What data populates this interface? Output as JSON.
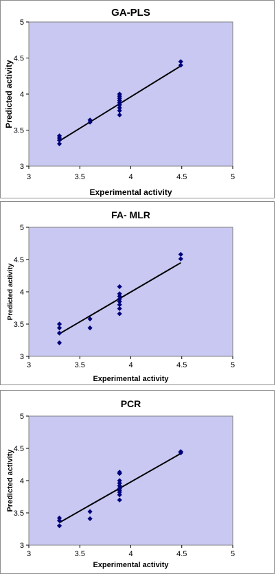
{
  "colors": {
    "plot_background": "#c8c8f2",
    "marker": "#00007a",
    "line": "#000000"
  },
  "chart_data": [
    {
      "type": "scatter",
      "title": "GA-PLS",
      "xlabel": "Experimental activity",
      "ylabel": "Predicted activity",
      "xlim": [
        3,
        5
      ],
      "ylim": [
        3,
        5
      ],
      "xticks": [
        "3",
        "3.5",
        "4",
        "4.5",
        "5"
      ],
      "yticks": [
        "3",
        "3.5",
        "4",
        "4.5",
        "5"
      ],
      "grid": false,
      "points": [
        {
          "x": 3.3,
          "y": 3.31
        },
        {
          "x": 3.3,
          "y": 3.36
        },
        {
          "x": 3.3,
          "y": 3.39
        },
        {
          "x": 3.3,
          "y": 3.42
        },
        {
          "x": 3.6,
          "y": 3.61
        },
        {
          "x": 3.6,
          "y": 3.64
        },
        {
          "x": 3.89,
          "y": 3.71
        },
        {
          "x": 3.89,
          "y": 3.77
        },
        {
          "x": 3.89,
          "y": 3.81
        },
        {
          "x": 3.89,
          "y": 3.85
        },
        {
          "x": 3.89,
          "y": 3.88
        },
        {
          "x": 3.89,
          "y": 3.91
        },
        {
          "x": 3.89,
          "y": 3.94
        },
        {
          "x": 3.89,
          "y": 3.97
        },
        {
          "x": 3.89,
          "y": 4.0
        },
        {
          "x": 4.49,
          "y": 4.4
        },
        {
          "x": 4.49,
          "y": 4.45
        }
      ],
      "trendline": {
        "x": [
          3.3,
          4.49
        ],
        "y": [
          3.35,
          4.39
        ]
      }
    },
    {
      "type": "scatter",
      "title": "FA- MLR",
      "xlabel": "Experimental activity",
      "ylabel": "Predicted activity",
      "xlim": [
        3,
        5
      ],
      "ylim": [
        3,
        5
      ],
      "xticks": [
        "3",
        "3.5",
        "4",
        "4.5",
        "5"
      ],
      "yticks": [
        "3",
        "3.5",
        "4",
        "4.5",
        "5"
      ],
      "grid": false,
      "points": [
        {
          "x": 3.3,
          "y": 3.21
        },
        {
          "x": 3.3,
          "y": 3.36
        },
        {
          "x": 3.3,
          "y": 3.44
        },
        {
          "x": 3.3,
          "y": 3.5
        },
        {
          "x": 3.6,
          "y": 3.44
        },
        {
          "x": 3.6,
          "y": 3.58
        },
        {
          "x": 3.89,
          "y": 3.66
        },
        {
          "x": 3.89,
          "y": 3.74
        },
        {
          "x": 3.89,
          "y": 3.8
        },
        {
          "x": 3.89,
          "y": 3.85
        },
        {
          "x": 3.89,
          "y": 3.89
        },
        {
          "x": 3.89,
          "y": 3.93
        },
        {
          "x": 3.89,
          "y": 3.97
        },
        {
          "x": 3.89,
          "y": 4.08
        },
        {
          "x": 4.49,
          "y": 4.51
        },
        {
          "x": 4.49,
          "y": 4.58
        }
      ],
      "trendline": {
        "x": [
          3.3,
          4.49
        ],
        "y": [
          3.35,
          4.45
        ]
      }
    },
    {
      "type": "scatter",
      "title": "PCR",
      "xlabel": "Experimental activity",
      "ylabel": "Predicted activity",
      "xlim": [
        3,
        5
      ],
      "ylim": [
        3,
        5
      ],
      "xticks": [
        "3",
        "3.5",
        "4",
        "4.5",
        "5"
      ],
      "yticks": [
        "3",
        "3.5",
        "4",
        "4.5",
        "5"
      ],
      "grid": false,
      "points": [
        {
          "x": 3.3,
          "y": 3.3
        },
        {
          "x": 3.3,
          "y": 3.38
        },
        {
          "x": 3.3,
          "y": 3.42
        },
        {
          "x": 3.6,
          "y": 3.41
        },
        {
          "x": 3.6,
          "y": 3.52
        },
        {
          "x": 3.89,
          "y": 3.7
        },
        {
          "x": 3.89,
          "y": 3.78
        },
        {
          "x": 3.89,
          "y": 3.82
        },
        {
          "x": 3.89,
          "y": 3.85
        },
        {
          "x": 3.89,
          "y": 3.88
        },
        {
          "x": 3.89,
          "y": 3.92
        },
        {
          "x": 3.89,
          "y": 3.96
        },
        {
          "x": 3.89,
          "y": 4.0
        },
        {
          "x": 3.89,
          "y": 4.11
        },
        {
          "x": 3.89,
          "y": 4.13
        },
        {
          "x": 4.49,
          "y": 4.43
        },
        {
          "x": 4.49,
          "y": 4.45
        }
      ],
      "trendline": {
        "x": [
          3.3,
          4.49
        ],
        "y": [
          3.35,
          4.42
        ]
      }
    }
  ]
}
